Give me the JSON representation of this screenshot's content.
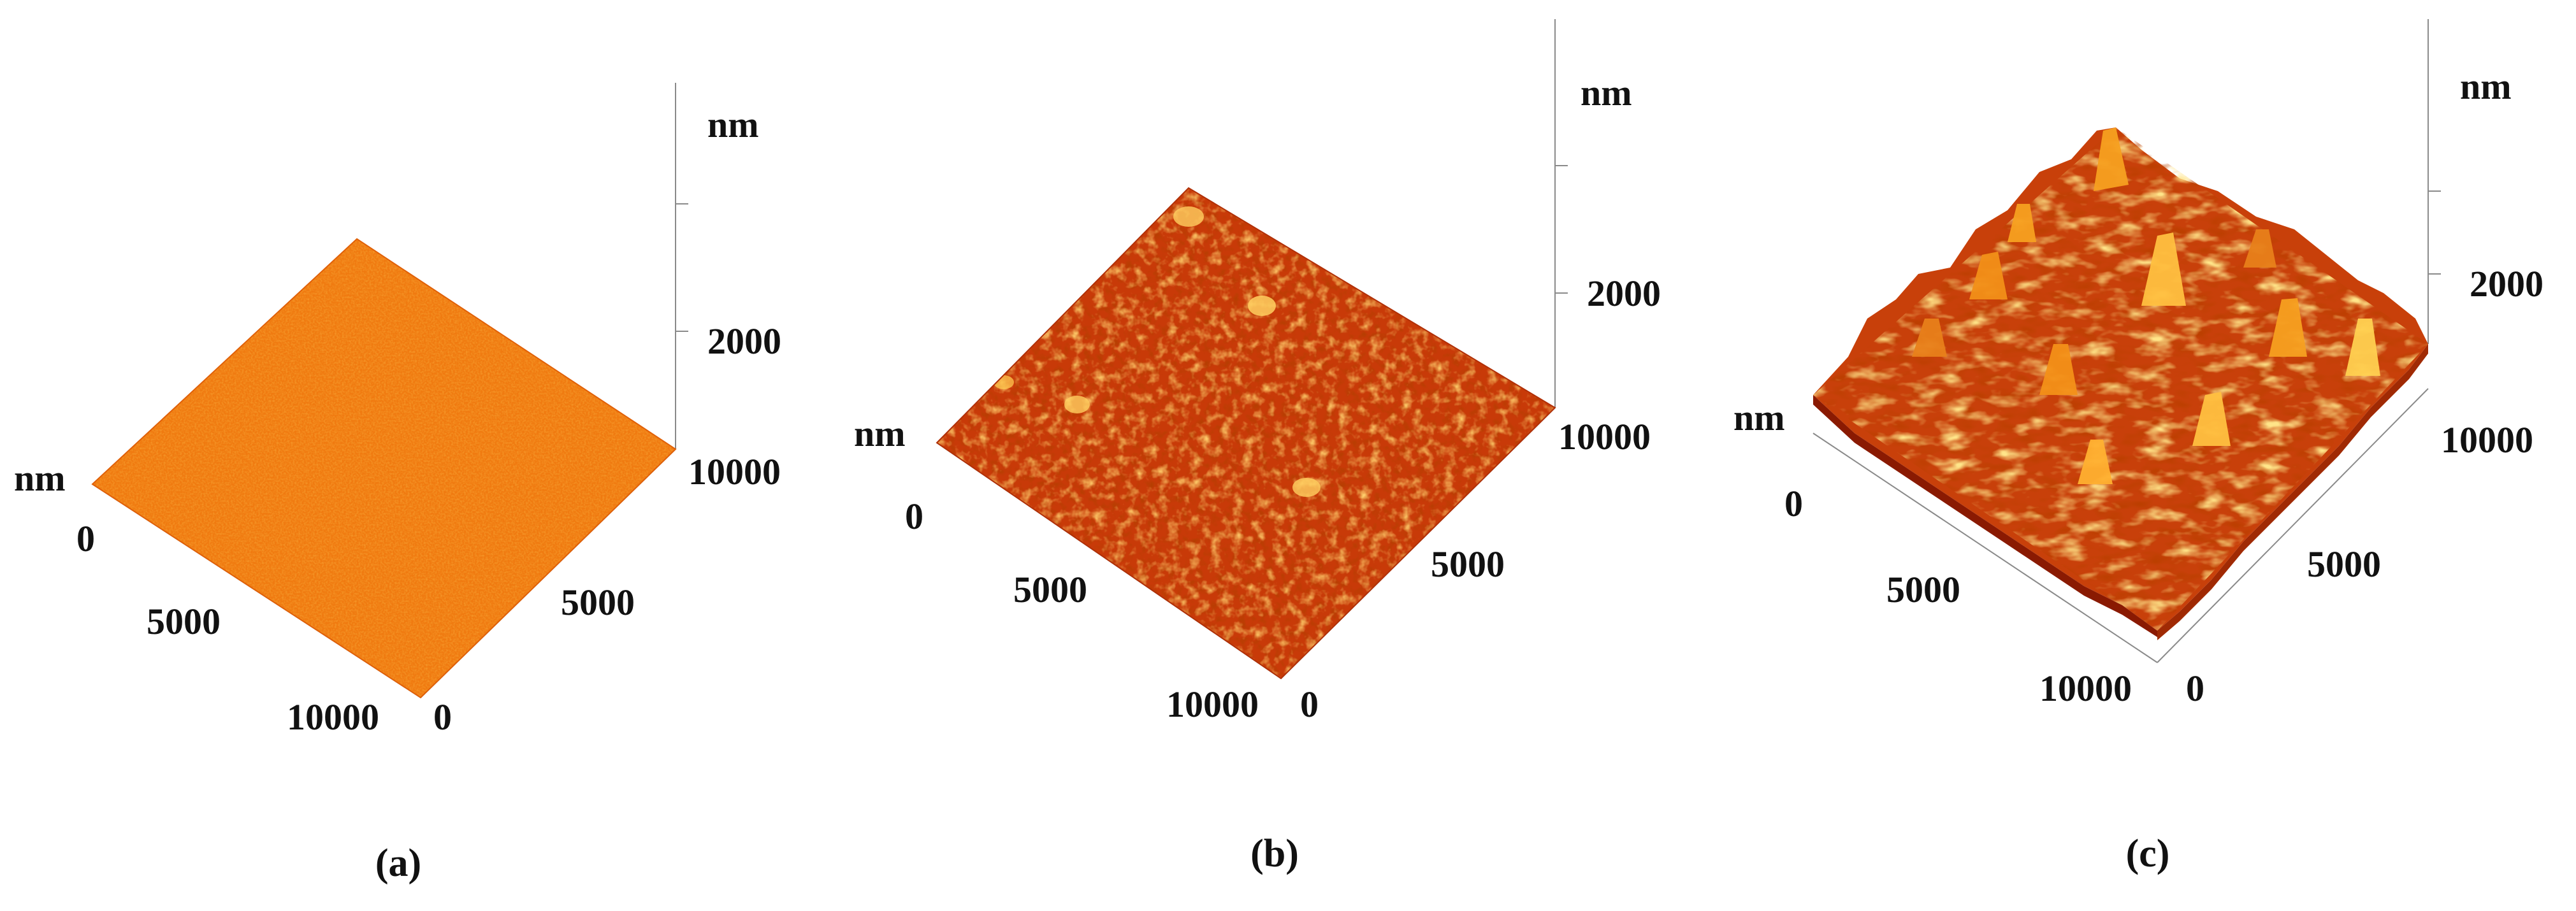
{
  "panels": [
    {
      "id": "a",
      "caption": "(a)",
      "z_unit": "nm",
      "z_tick": "2000",
      "xy_unit": "nm",
      "x_ticks": [
        "0",
        "5000",
        "10000"
      ],
      "y_ticks": [
        "0",
        "5000",
        "10000"
      ],
      "roughness": 0.05,
      "surface_color": "#f07a10"
    },
    {
      "id": "b",
      "caption": "(b)",
      "z_unit": "nm",
      "z_tick": "2000",
      "xy_unit": "nm",
      "x_ticks": [
        "0",
        "5000",
        "10000"
      ],
      "y_ticks": [
        "0",
        "5000",
        "10000"
      ],
      "roughness": 0.25,
      "surface_color": "#c83a08"
    },
    {
      "id": "c",
      "caption": "(c)",
      "z_unit": "nm",
      "z_tick": "2000",
      "xy_unit": "nm",
      "x_ticks": [
        "0",
        "5000",
        "10000"
      ],
      "y_ticks": [
        "0",
        "5000",
        "10000"
      ],
      "roughness": 1.0,
      "surface_color": "#e04a08"
    }
  ],
  "colors": {
    "dark": "#8a1a02",
    "mid": "#d64a08",
    "bright": "#f7a020",
    "highlight": "#ffe070",
    "axis": "#8a8a8a"
  }
}
